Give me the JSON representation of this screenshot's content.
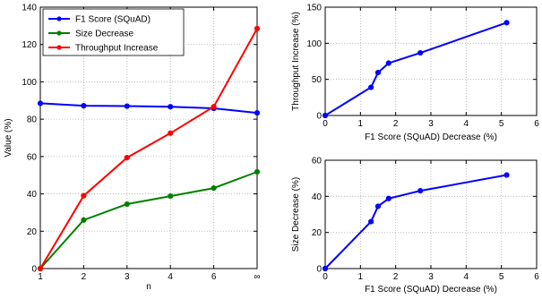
{
  "chart_data": [
    {
      "type": "line",
      "xlabel": "n",
      "ylabel": "Value (%)",
      "categories": [
        "1",
        "2",
        "3",
        "4",
        "6",
        "∞"
      ],
      "ylim": [
        0,
        140
      ],
      "yticks": [
        0,
        20,
        40,
        60,
        80,
        100,
        120,
        140
      ],
      "grid": true,
      "legend_position": "top-left",
      "series": [
        {
          "name": "F1 Score (SQuAD)",
          "color": "#0000ff",
          "values": [
            88.5,
            87.2,
            87.0,
            86.7,
            85.8,
            83.4
          ]
        },
        {
          "name": "Size Decrease",
          "color": "#008000",
          "values": [
            0,
            26,
            34.5,
            38.8,
            43.1,
            51.8
          ]
        },
        {
          "name": "Throughput Increase",
          "color": "#ff0000",
          "values": [
            0,
            39,
            59.4,
            72.5,
            86.7,
            128.5
          ]
        }
      ]
    },
    {
      "type": "line",
      "xlabel": "F1 Score (SQuAD) Decrease (%)",
      "ylabel": "Throughput Increase (%)",
      "xlim": [
        0,
        6
      ],
      "ylim": [
        0,
        150
      ],
      "xticks": [
        0,
        1,
        2,
        3,
        4,
        5,
        6
      ],
      "yticks": [
        0,
        50,
        100,
        150
      ],
      "grid": true,
      "series": [
        {
          "color": "#0000ff",
          "x": [
            0,
            1.3,
            1.5,
            1.8,
            2.7,
            5.15
          ],
          "y": [
            0,
            39,
            59.4,
            72.5,
            86.7,
            128.5
          ]
        }
      ]
    },
    {
      "type": "line",
      "xlabel": "F1 Score (SQuAD) Decrease (%)",
      "ylabel": "Size Decrease (%)",
      "xlim": [
        0,
        6
      ],
      "ylim": [
        0,
        60
      ],
      "xticks": [
        0,
        1,
        2,
        3,
        4,
        5,
        6
      ],
      "yticks": [
        0,
        20,
        40,
        60
      ],
      "grid": true,
      "series": [
        {
          "color": "#0000ff",
          "x": [
            0,
            1.3,
            1.5,
            1.8,
            2.7,
            5.15
          ],
          "y": [
            0,
            26,
            34.5,
            38.8,
            43.1,
            51.8
          ]
        }
      ]
    }
  ]
}
